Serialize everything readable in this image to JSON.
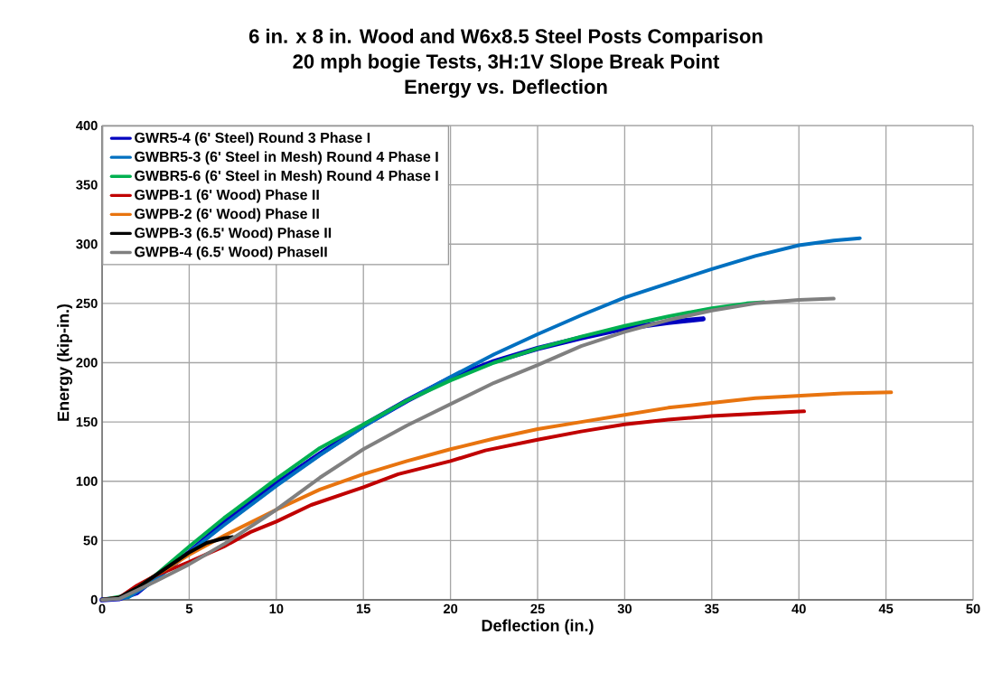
{
  "chart_data": {
    "type": "line",
    "title": "6 in. x 8 in. Wood and W6x8.5 Steel Posts Comparison",
    "subtitle": "20 mph bogie Tests, 3H:1V Slope Break Point",
    "annotations": [
      "Energy vs. Deflection"
    ],
    "xlabel": "Deflection (in.)",
    "ylabel": "Energy (kip-in.)",
    "xlim": [
      0,
      50
    ],
    "ylim": [
      0,
      400
    ],
    "xticks": [
      0,
      5,
      10,
      15,
      20,
      25,
      30,
      35,
      40,
      45,
      50
    ],
    "yticks": [
      0,
      50,
      100,
      150,
      200,
      250,
      300,
      350,
      400
    ],
    "grid": true,
    "legend": "top left",
    "marker": "none",
    "line_style": "solid",
    "series": [
      {
        "name": "GWR5-4 (6' Steel) Round 3 Phase I",
        "color": "#0000c0",
        "x": [
          0,
          1,
          2,
          3,
          5,
          7,
          10,
          12.5,
          15,
          17.5,
          20,
          22.5,
          25,
          27.5,
          30,
          32.5,
          34.5
        ],
        "values": [
          0,
          1,
          6,
          18,
          40,
          65,
          98,
          123,
          147,
          168,
          187,
          201,
          212,
          221,
          229,
          234,
          237
        ]
      },
      {
        "name": "GWBR5-3 (6' Steel in Mesh) Round 4 Phase I",
        "color": "#0070c0",
        "x": [
          0,
          1.5,
          3,
          5,
          7,
          10,
          12.5,
          15,
          17.5,
          20,
          22.5,
          25,
          27.5,
          30,
          32.5,
          35,
          37.5,
          40,
          42,
          43.5
        ],
        "values": [
          0,
          2,
          16,
          40,
          63,
          96,
          122,
          146,
          168,
          188,
          207,
          224,
          240,
          255,
          267,
          279,
          290,
          299,
          303,
          305
        ]
      },
      {
        "name": "GWBR5-6 (6' Steel in Mesh) Round 4 Phase I",
        "color": "#00b050",
        "x": [
          0,
          1.5,
          3,
          5,
          7,
          10,
          12.5,
          15,
          17.5,
          20,
          22.5,
          25,
          27.5,
          30,
          32.5,
          35,
          37,
          38
        ],
        "values": [
          0,
          4,
          20,
          45,
          69,
          102,
          128,
          148,
          168,
          185,
          200,
          212,
          222,
          231,
          239,
          246,
          250,
          251
        ]
      },
      {
        "name": "GWPB-1 (6' Wood) Phase II",
        "color": "#c00000",
        "x": [
          0,
          1,
          2,
          3,
          5,
          7,
          8.5,
          10,
          12,
          14,
          15,
          17,
          20,
          22,
          25,
          27.5,
          30,
          32.5,
          35,
          37.5,
          40.3
        ],
        "values": [
          0,
          2,
          12,
          20,
          32,
          45,
          57,
          66,
          80,
          90,
          95,
          106,
          117,
          126,
          135,
          142,
          148,
          152,
          155,
          157,
          159
        ]
      },
      {
        "name": "GWPB-2 (6' Wood) Phase II",
        "color": "#e8740f",
        "x": [
          2,
          3,
          5,
          7,
          10,
          12.5,
          15,
          17.5,
          20,
          22.5,
          25,
          27.5,
          30,
          32.5,
          35,
          37.5,
          40,
          42.5,
          45.3
        ],
        "values": [
          10,
          20,
          38,
          54,
          76,
          93,
          106,
          117,
          127,
          136,
          144,
          150,
          156,
          162,
          166,
          170,
          172,
          174,
          175
        ]
      },
      {
        "name": "GWPB-3 (6.5' Wood) Phase II",
        "color": "#000000",
        "x": [
          0,
          1,
          2,
          3,
          4,
          5,
          6,
          7,
          7.5
        ],
        "values": [
          0,
          2,
          10,
          20,
          30,
          40,
          48,
          52,
          53
        ]
      },
      {
        "name": "GWPB-4 (6.5' Wood) PhaseII",
        "color": "#808080",
        "x": [
          0,
          1,
          2,
          3,
          5,
          7,
          10,
          12.5,
          15,
          17.5,
          20,
          22.5,
          25,
          27.5,
          30,
          32.5,
          35,
          37.5,
          40,
          42
        ],
        "values": [
          0,
          1,
          8,
          15,
          30,
          47,
          76,
          103,
          127,
          147,
          165,
          183,
          198,
          214,
          226,
          236,
          244,
          250,
          253,
          254
        ]
      }
    ]
  }
}
